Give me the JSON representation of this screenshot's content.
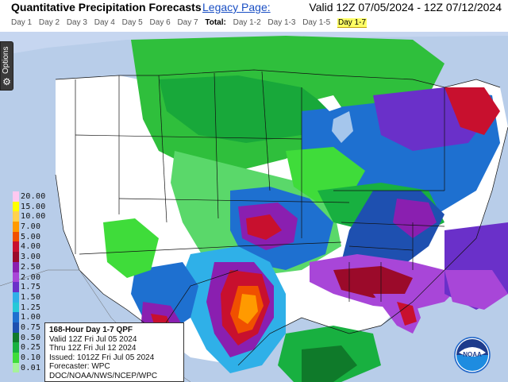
{
  "header": {
    "title": "Quantitative Precipitation Forecasts",
    "legacy_link": "Legacy Page:",
    "valid_range": "Valid 12Z 07/05/2024 - 12Z 07/12/2024"
  },
  "day_tabs": {
    "items": [
      "Day 1",
      "Day 2",
      "Day 3",
      "Day 4",
      "Day 5",
      "Day 6",
      "Day 7"
    ],
    "total_label": "Total:",
    "totals": [
      "Day 1-2",
      "Day 1-3",
      "Day 1-5",
      "Day 1-7"
    ],
    "active": "Day 1-7"
  },
  "options_tab": {
    "label": "Options",
    "icon": "gear-icon"
  },
  "legend": {
    "entries": [
      {
        "label": "20.00",
        "color": "#ffc8f0"
      },
      {
        "label": "15.00",
        "color": "#ffff00"
      },
      {
        "label": "10.00",
        "color": "#ffd24d"
      },
      {
        "label": "7.00",
        "color": "#ff9a00"
      },
      {
        "label": "5.00",
        "color": "#f05000"
      },
      {
        "label": "4.00",
        "color": "#c8102e"
      },
      {
        "label": "3.00",
        "color": "#9b0a2a"
      },
      {
        "label": "2.50",
        "color": "#8a1fb0"
      },
      {
        "label": "2.00",
        "color": "#a846d8"
      },
      {
        "label": "1.75",
        "color": "#6a30c9"
      },
      {
        "label": "1.50",
        "color": "#2fb0e8"
      },
      {
        "label": "1.25",
        "color": "#25c8d8"
      },
      {
        "label": "1.00",
        "color": "#1e70d0"
      },
      {
        "label": "0.75",
        "color": "#1e50b0"
      },
      {
        "label": "0.50",
        "color": "#0f7a2a"
      },
      {
        "label": "0.25",
        "color": "#18b040"
      },
      {
        "label": "0.10",
        "color": "#3fdc3a"
      },
      {
        "label": "0.01",
        "color": "#a6f29a"
      }
    ]
  },
  "infobox": {
    "heading": "168-Hour Day 1-7 QPF",
    "valid": "Valid 12Z Fri Jul 05 2024",
    "thru": "Thru 12Z Fri Jul 12 2024",
    "issued": "Issued: 1012Z Fri Jul 05 2024",
    "forecaster": "Forecaster: WPC",
    "source": "DOC/NOAA/NWS/NCEP/WPC"
  },
  "logo": {
    "text": "NOAA",
    "color": "#1e64c8"
  },
  "map": {
    "background_color": "#c6d6f0",
    "land_dry_color": "#ffffff"
  }
}
